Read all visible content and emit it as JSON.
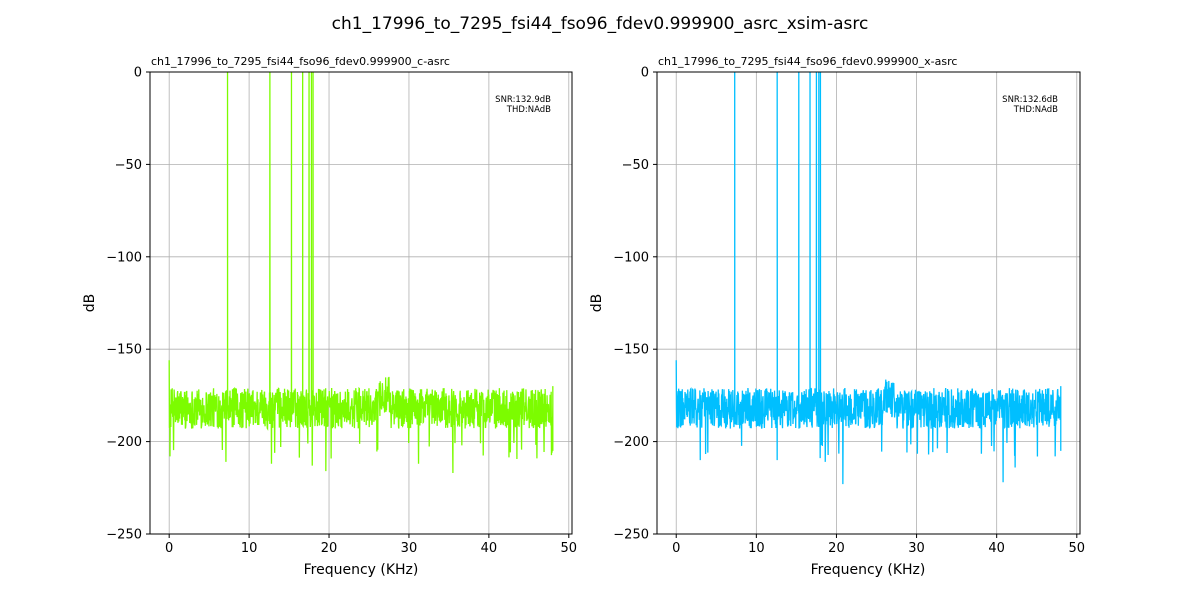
{
  "figure": {
    "suptitle": "ch1_17996_to_7295_fsi44_fso96_fdev0.999900_asrc_xsim-asrc"
  },
  "chart_data": [
    {
      "type": "line",
      "title": "ch1_17996_to_7295_fsi44_fso96_fdev0.999900_c-asrc",
      "xlabel": "Frequency (KHz)",
      "ylabel": "dB",
      "xlim": [
        -2.4,
        50.4
      ],
      "ylim": [
        -250,
        0
      ],
      "xticks": [
        0,
        10,
        20,
        30,
        40,
        50
      ],
      "yticks": [
        0,
        -50,
        -100,
        -150,
        -200,
        -250
      ],
      "grid": true,
      "color": "#7cfc00",
      "annotation": [
        "SNR:132.9dB",
        "THD:NAdB"
      ],
      "annotation_position": "top-right",
      "series": [
        {
          "peaks_khz": [
            7.3,
            12.6,
            15.3,
            16.7,
            17.5,
            17.8,
            18.0
          ],
          "peak_db": 0,
          "noise_floor_db": [
            -185,
            -170
          ],
          "noise_band_khz": [
            0,
            48
          ],
          "deep_dips": [
            [
              0.1,
              -208
            ],
            [
              7.1,
              -211
            ],
            [
              12.8,
              -212
            ],
            [
              17.9,
              -213
            ],
            [
              19.6,
              -216
            ],
            [
              31.2,
              -212
            ],
            [
              35.5,
              -217
            ],
            [
              47.9,
              -206
            ]
          ]
        }
      ]
    },
    {
      "type": "line",
      "title": "ch1_17996_to_7295_fsi44_fso96_fdev0.999900_x-asrc",
      "xlabel": "Frequency (KHz)",
      "ylabel": "dB",
      "xlim": [
        -2.4,
        50.4
      ],
      "ylim": [
        -250,
        0
      ],
      "xticks": [
        0,
        10,
        20,
        30,
        40,
        50
      ],
      "yticks": [
        0,
        -50,
        -100,
        -150,
        -200,
        -250
      ],
      "grid": true,
      "color": "#00bfff",
      "annotation": [
        "SNR:132.6dB",
        "THD:NAdB"
      ],
      "annotation_position": "top-right",
      "series": [
        {
          "peaks_khz": [
            7.3,
            12.6,
            15.3,
            16.7,
            17.5,
            17.8,
            18.0
          ],
          "peak_db": 0,
          "noise_floor_db": [
            -185,
            -170
          ],
          "noise_band_khz": [
            0,
            48
          ],
          "deep_dips": [
            [
              3.0,
              -210
            ],
            [
              12.6,
              -210
            ],
            [
              18.6,
              -211
            ],
            [
              20.8,
              -223
            ],
            [
              31.5,
              -207
            ],
            [
              40.8,
              -222
            ],
            [
              42.3,
              -214
            ],
            [
              47.3,
              -208
            ]
          ]
        }
      ]
    }
  ]
}
